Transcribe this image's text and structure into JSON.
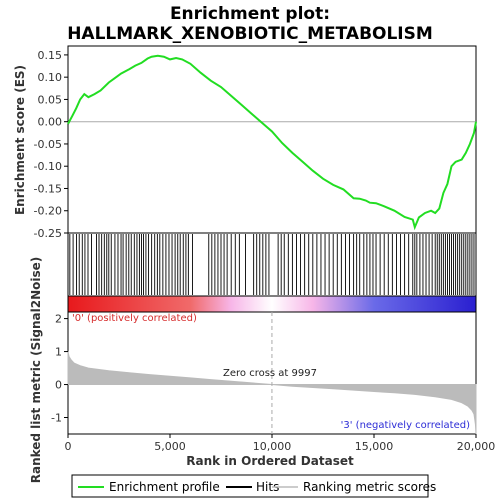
{
  "title_line1": "Enrichment plot:",
  "title_line2": "HALLMARK_XENOBIOTIC_METABOLISM",
  "colors": {
    "es_line": "#22dd22",
    "hits": "#000000",
    "metric_fill": "#bbbbbb",
    "zero_cross": "#aaaaaa",
    "pos_label": "#d62c2c",
    "neg_label": "#2c2cd6",
    "gradient_red": "#e8191c",
    "gradient_pink": "#f7b6e8",
    "gradient_blue": "#2a1fd0"
  },
  "labels": {
    "es_ylabel": "Enrichment score (ES)",
    "metric_ylabel": "Ranked list metric (Signal2Noise)",
    "xlabel": "Rank in Ordered Dataset",
    "pos_corr": "'0' (positively correlated)",
    "neg_corr": "'3' (negatively correlated)",
    "zero_cross": "Zero cross at 9997"
  },
  "legend": {
    "items": [
      {
        "label": "Enrichment profile",
        "icon": "green-line"
      },
      {
        "label": "Hits",
        "icon": "black-line"
      },
      {
        "label": "Ranking metric scores",
        "icon": "gray-line"
      }
    ]
  },
  "chart_data": {
    "type": "line",
    "n_genes": 20000,
    "zero_cross": 9997,
    "xlim": [
      0,
      20000
    ],
    "x_ticks": [
      0,
      5000,
      10000,
      15000,
      20000
    ],
    "x_tick_labels": [
      "0",
      "5,000",
      "10,000",
      "15,000",
      "20,000"
    ],
    "es": {
      "ylim": [
        -0.25,
        0.17
      ],
      "y_ticks": [
        0.15,
        0.1,
        0.05,
        0.0,
        -0.05,
        -0.1,
        -0.15,
        -0.2,
        -0.25
      ],
      "y_tick_labels": [
        "0.15",
        "0.10",
        "0.05",
        "0.00",
        "-0.05",
        "-0.10",
        "-0.15",
        "-0.20",
        "-0.25"
      ],
      "x": [
        0,
        200,
        400,
        600,
        800,
        1000,
        1300,
        1600,
        2000,
        2300,
        2600,
        3000,
        3300,
        3600,
        3900,
        4100,
        4400,
        4700,
        5000,
        5300,
        5600,
        6000,
        6500,
        7000,
        7500,
        8000,
        8500,
        9000,
        9500,
        10000,
        10500,
        11000,
        11500,
        12000,
        12500,
        13000,
        13500,
        14000,
        14300,
        14600,
        14800,
        15100,
        15500,
        16000,
        16500,
        16900,
        17000,
        17200,
        17500,
        17800,
        18000,
        18200,
        18400,
        18600,
        18800,
        19000,
        19300,
        19500,
        19700,
        19900,
        20000
      ],
      "y": [
        -0.005,
        0.012,
        0.03,
        0.05,
        0.062,
        0.055,
        0.062,
        0.07,
        0.088,
        0.098,
        0.108,
        0.118,
        0.126,
        0.132,
        0.142,
        0.146,
        0.148,
        0.146,
        0.14,
        0.143,
        0.14,
        0.13,
        0.11,
        0.092,
        0.078,
        0.058,
        0.038,
        0.018,
        -0.002,
        -0.022,
        -0.048,
        -0.07,
        -0.09,
        -0.11,
        -0.128,
        -0.142,
        -0.152,
        -0.172,
        -0.173,
        -0.177,
        -0.182,
        -0.183,
        -0.19,
        -0.2,
        -0.214,
        -0.22,
        -0.237,
        -0.215,
        -0.205,
        -0.2,
        -0.205,
        -0.195,
        -0.16,
        -0.14,
        -0.1,
        -0.09,
        -0.085,
        -0.07,
        -0.05,
        -0.025,
        0.0
      ]
    },
    "hits": [
      90,
      250,
      420,
      550,
      700,
      830,
      980,
      1150,
      1400,
      1520,
      1650,
      1780,
      1900,
      2000,
      2120,
      2300,
      2450,
      2600,
      2700,
      2850,
      2980,
      3100,
      3250,
      3380,
      3500,
      3600,
      3700,
      3820,
      3950,
      4100,
      4250,
      4380,
      4500,
      4650,
      4800,
      4950,
      5100,
      5250,
      5380,
      5500,
      5650,
      5780,
      5900,
      6100,
      6900,
      7050,
      7200,
      7350,
      7500,
      7650,
      7800,
      8000,
      8200,
      8400,
      8700,
      9100,
      9250,
      9400,
      9550,
      9700,
      9850,
      10300,
      10450,
      10600,
      10800,
      11000,
      11200,
      11400,
      11600,
      11800,
      12000,
      12200,
      12400,
      12600,
      12800,
      13000,
      13200,
      13400,
      13600,
      13800,
      14000,
      14150,
      14300,
      14500,
      14650,
      14800,
      14950,
      15100,
      15300,
      15500,
      15700,
      15900,
      16100,
      16300,
      16500,
      16700,
      16900,
      17000,
      17100,
      17250,
      17400,
      17550,
      17700,
      17850,
      18000,
      18100,
      18200,
      18300,
      18400,
      18500,
      18600,
      18700,
      18800,
      18900,
      19000,
      19100,
      19200,
      19300,
      19400,
      19500,
      19600,
      19700,
      19800,
      19900
    ],
    "metric": {
      "ylim": [
        -1.5,
        2.2
      ],
      "y_ticks": [
        2,
        1,
        0,
        -1
      ],
      "y_tick_labels": [
        "2",
        "1",
        "0",
        "-1"
      ],
      "x": [
        0,
        50,
        150,
        300,
        600,
        1000,
        2000,
        3000,
        4000,
        5000,
        6000,
        7000,
        8000,
        9000,
        9997,
        11000,
        12000,
        13000,
        14000,
        15000,
        16000,
        17000,
        18000,
        18800,
        19300,
        19600,
        19800,
        19900,
        19970,
        20000
      ],
      "y": [
        1.0,
        0.85,
        0.75,
        0.65,
        0.57,
        0.5,
        0.42,
        0.36,
        0.3,
        0.25,
        0.2,
        0.15,
        0.1,
        0.05,
        0.0,
        -0.05,
        -0.09,
        -0.13,
        -0.17,
        -0.21,
        -0.25,
        -0.3,
        -0.37,
        -0.45,
        -0.55,
        -0.65,
        -0.78,
        -0.9,
        -1.2,
        -1.5
      ]
    }
  }
}
